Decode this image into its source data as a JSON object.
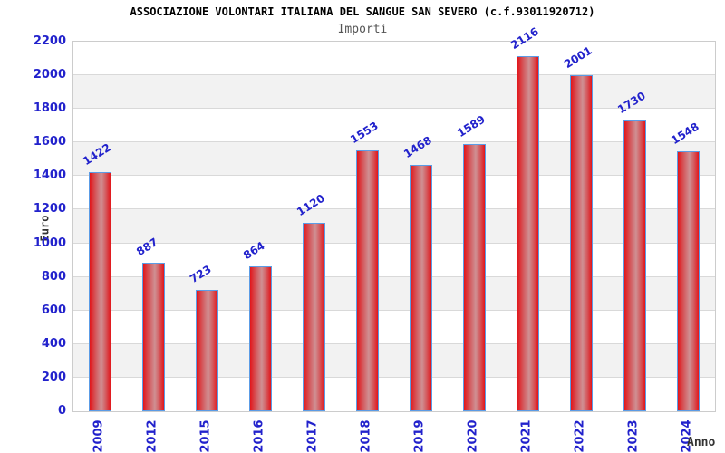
{
  "header": {
    "title": "ASSOCIAZIONE VOLONTARI ITALIANA DEL SANGUE SAN SEVERO (c.f.93011920712)",
    "subtitle": "Importi"
  },
  "chart_data": {
    "type": "bar",
    "title": "Importi",
    "categories": [
      "2009",
      "2012",
      "2015",
      "2016",
      "2017",
      "2018",
      "2019",
      "2020",
      "2021",
      "2022",
      "2023",
      "2024"
    ],
    "values": [
      1422,
      887,
      723,
      864,
      1120,
      1553,
      1468,
      1589,
      2116,
      2001,
      1730,
      1548
    ],
    "xlabel": "Anno",
    "ylabel": "Euro",
    "ylim": [
      0,
      2200
    ],
    "ytick_step": 200,
    "grid": "alternating-horizontal-bands",
    "legend": "none",
    "colors": {
      "bar_fill_edge": "#e2151a",
      "bar_fill_center": "#cf9093",
      "bar_border": "#5b9ce6",
      "tick_label": "#2222cc",
      "value_label": "#2222cc",
      "band_gray": "#f2f2f2",
      "gridline": "#d9d9d9",
      "plot_border": "#cccccc",
      "title_color": "#000000",
      "subtitle_color": "#555555"
    }
  }
}
